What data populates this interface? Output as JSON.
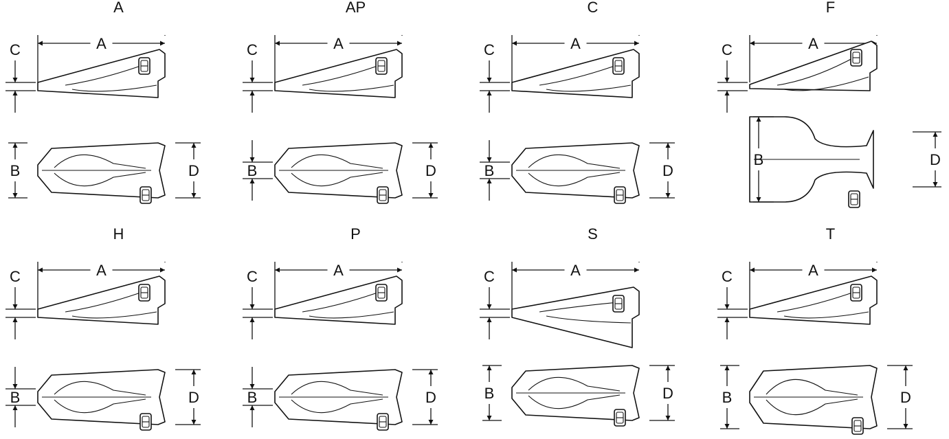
{
  "diagrams": [
    {
      "title": "A",
      "variant": "A"
    },
    {
      "title": "AP",
      "variant": "AP"
    },
    {
      "title": "C",
      "variant": "C"
    },
    {
      "title": "F",
      "variant": "F"
    },
    {
      "title": "H",
      "variant": "H"
    },
    {
      "title": "P",
      "variant": "P"
    },
    {
      "title": "S",
      "variant": "S"
    },
    {
      "title": "T",
      "variant": "T"
    }
  ],
  "dimension_labels": {
    "a": "A",
    "b": "B",
    "c": "C",
    "d": "D"
  }
}
